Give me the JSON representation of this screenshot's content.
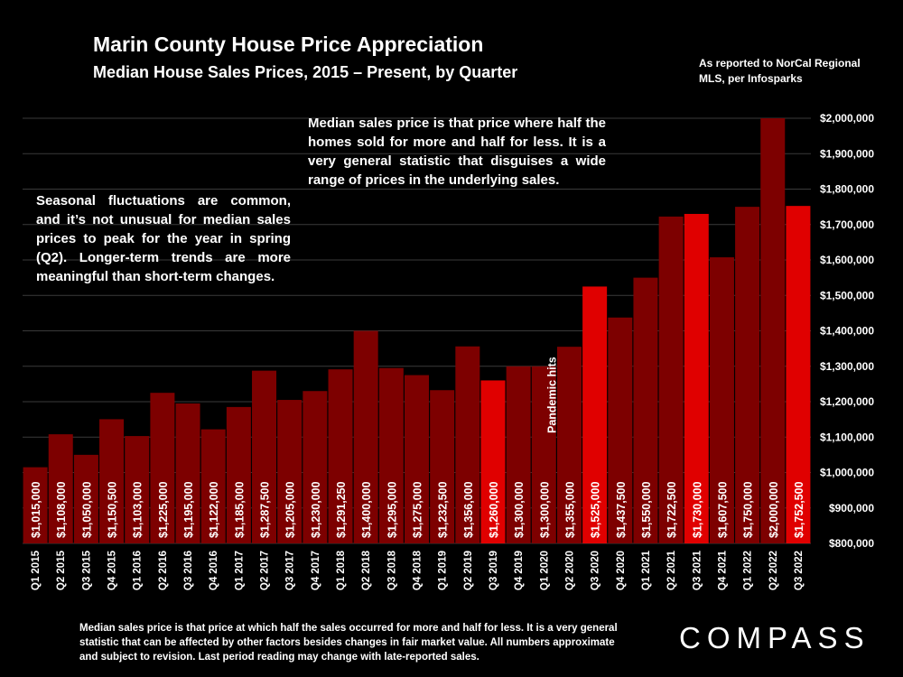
{
  "header": {
    "title": "Marin County House Price Appreciation",
    "subtitle": "Median House Sales Prices, 2015 – Present, by Quarter",
    "source": "As reported to NorCal Regional MLS, per Infosparks"
  },
  "notes": {
    "median": "Median sales price is that price where half the homes sold for more and half for less. It is a very general statistic that disguises a wide range of prices in the underlying sales.",
    "seasonal": "Seasonal fluctuations are common, and it’s not unusual for median sales prices to peak for the year in spring (Q2). Longer-term trends are more meaningful than short-term changes."
  },
  "footnote": "Median sales price is that price at which half the sales occurred for more and half for less. It is a very general statistic that can be affected by other factors besides changes in fair market value. All numbers approximate and subject to revision. Last period reading may change with late-reported sales.",
  "brand": {
    "logo": "COMPASS"
  },
  "colors": {
    "background": "#000000",
    "bar": "#7d0000",
    "bar_highlight": "#e00000",
    "grid": "#3a3a3a"
  },
  "chart_data": {
    "type": "bar",
    "title": "Marin County House Price Appreciation",
    "subtitle": "Median House Sales Prices, 2015 – Present, by Quarter",
    "xlabel": "",
    "ylabel": "",
    "ylim": [
      800000,
      2000000
    ],
    "yticks": [
      800000,
      900000,
      1000000,
      1100000,
      1200000,
      1300000,
      1400000,
      1500000,
      1600000,
      1700000,
      1800000,
      1900000,
      2000000
    ],
    "ytick_labels": [
      "$800,000",
      "$900,000",
      "$1,000,000",
      "$1,100,000",
      "$1,200,000",
      "$1,300,000",
      "$1,400,000",
      "$1,500,000",
      "$1,600,000",
      "$1,700,000",
      "$1,800,000",
      "$1,900,000",
      "$2,000,000"
    ],
    "y_axis_side": "right",
    "grid": true,
    "categories": [
      "Q1 2015",
      "Q2 2015",
      "Q3 2015",
      "Q4 2015",
      "Q1 2016",
      "Q2 2016",
      "Q3 2016",
      "Q4 2016",
      "Q1 2017",
      "Q2 2017",
      "Q3 2017",
      "Q4 2017",
      "Q1 2018",
      "Q2 2018",
      "Q3 2018",
      "Q4 2018",
      "Q1 2019",
      "Q2 2019",
      "Q3 2019",
      "Q4 2019",
      "Q1 2020",
      "Q2 2020",
      "Q3 2020",
      "Q4 2020",
      "Q1 2021",
      "Q2 2021",
      "Q3 2021",
      "Q4 2021",
      "Q1 2022",
      "Q2 2022",
      "Q3 2022"
    ],
    "values": [
      1015000,
      1108000,
      1050000,
      1150500,
      1103000,
      1225000,
      1195000,
      1122000,
      1185000,
      1287500,
      1205000,
      1230000,
      1291250,
      1400000,
      1295000,
      1275000,
      1232500,
      1356000,
      1260000,
      1300000,
      1300000,
      1355000,
      1525000,
      1437500,
      1550000,
      1722500,
      1730000,
      1607500,
      1750000,
      2000000,
      1752500
    ],
    "data_labels": [
      "$1,015,000",
      "$1,108,000",
      "$1,050,000",
      "$1,150,500",
      "$1,103,000",
      "$1,225,000",
      "$1,195,000",
      "$1,122,000",
      "$1,185,000",
      "$1,287,500",
      "$1,205,000",
      "$1,230,000",
      "$1,291,250",
      "$1,400,000",
      "$1,295,000",
      "$1,275,000",
      "$1,232,500",
      "$1,356,000",
      "$1,260,000",
      "$1,300,000",
      "$1,300,000",
      "$1,355,000",
      "$1,525,000",
      "$1,437,500",
      "$1,550,000",
      "$1,722,500",
      "$1,730,000",
      "$1,607,500",
      "$1,750,000",
      "$2,000,000",
      "$1,752,500"
    ],
    "highlighted": [
      "Q3 2019",
      "Q3 2020",
      "Q3 2021",
      "Q3 2022"
    ],
    "annotations": [
      {
        "category": "Q1 2020",
        "text": "Pandemic hits"
      }
    ]
  }
}
